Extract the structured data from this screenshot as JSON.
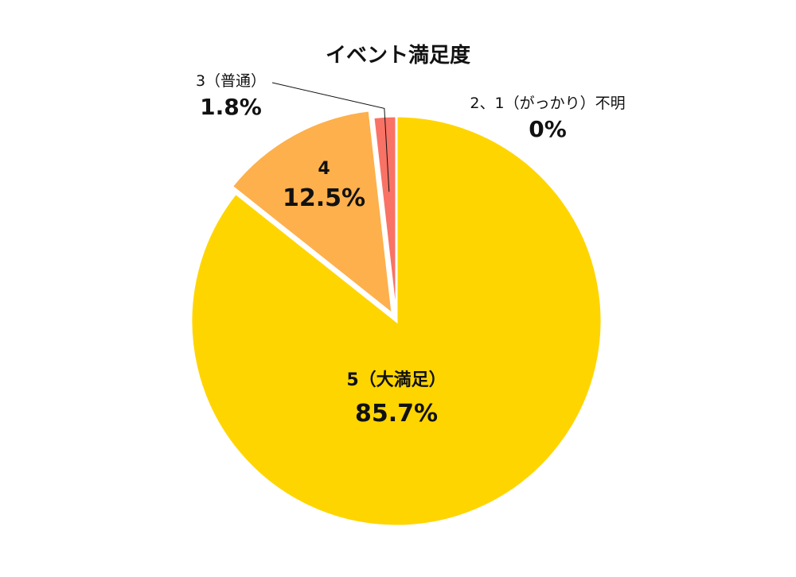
{
  "chart_data": {
    "type": "pie",
    "title": "イベント満足度",
    "slices": [
      {
        "label": "5（大満足）",
        "value": 85.7,
        "value_label": "85.7%",
        "color": "#FFD500",
        "exploded": false,
        "label_position": "inside"
      },
      {
        "label": "4",
        "value": 12.5,
        "value_label": "12.5%",
        "color": "#FDB04C",
        "exploded": true,
        "label_position": "inside"
      },
      {
        "label": "3（普通）",
        "value": 1.8,
        "value_label": "1.8%",
        "color": "#F97266",
        "exploded": false,
        "label_position": "outside-left"
      },
      {
        "label": "2、1（がっかり）不明",
        "value": 0,
        "value_label": "0%",
        "color": "#F97266",
        "exploded": false,
        "label_position": "outside-right"
      }
    ],
    "start_angle": "12 o'clock",
    "direction": "clockwise",
    "legend": "none"
  }
}
